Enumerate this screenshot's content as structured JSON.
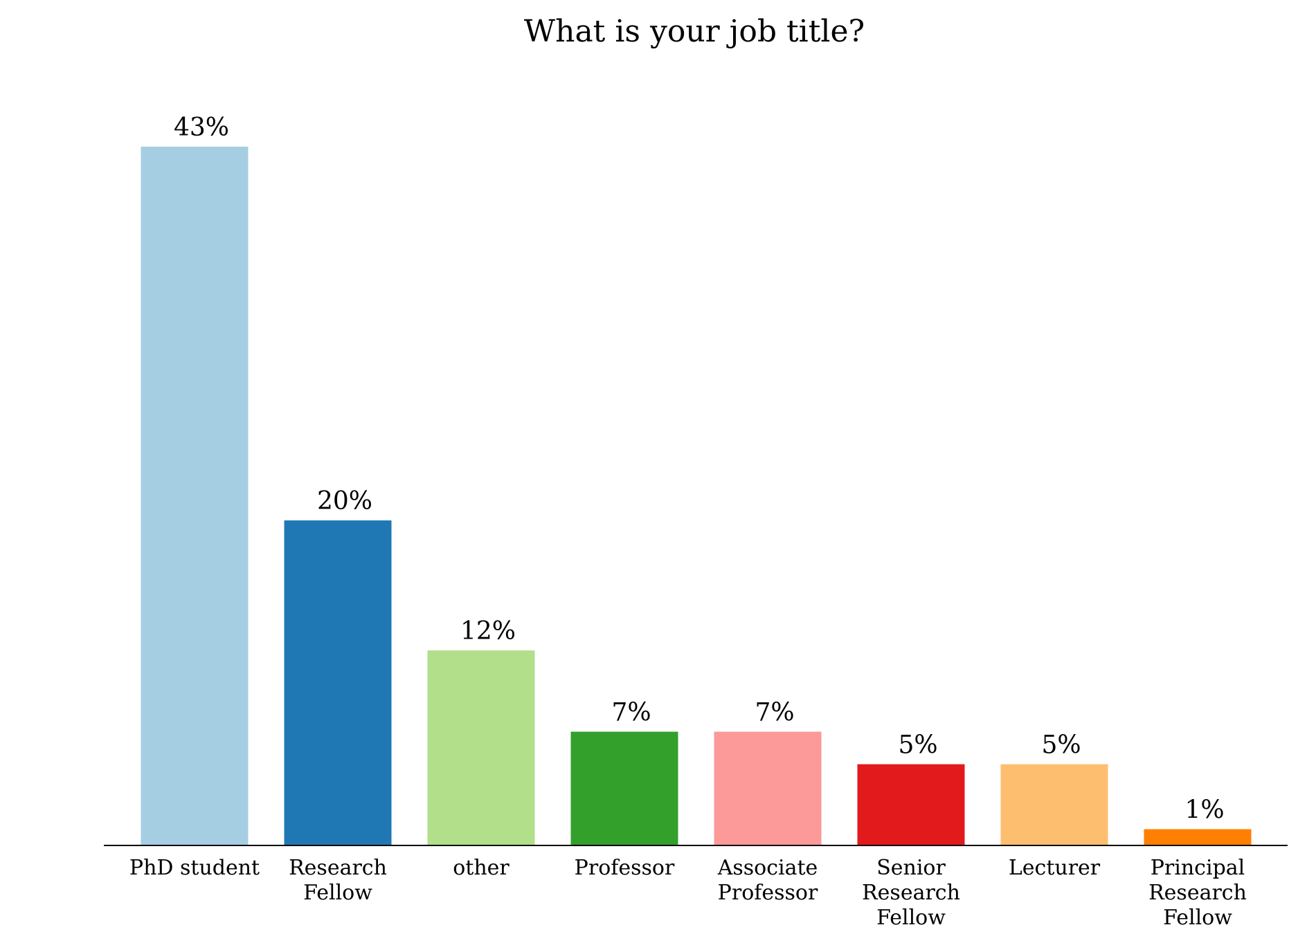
{
  "chart_data": {
    "type": "bar",
    "title": "What is your job title?",
    "xlabel": "",
    "ylabel": "",
    "ylim": [
      0,
      46
    ],
    "grid": false,
    "legend": "none",
    "categories": [
      "PhD student",
      "Research Fellow",
      "other",
      "Professor",
      "Associate Professor",
      "Senior Research Fellow",
      "Lecturer",
      "Principal Research Fellow"
    ],
    "tick_lines": [
      [
        "PhD student"
      ],
      [
        "Research",
        "Fellow"
      ],
      [
        "other"
      ],
      [
        "Professor"
      ],
      [
        "Associate",
        "Professor"
      ],
      [
        "Senior",
        "Research",
        "Fellow"
      ],
      [
        "Lecturer"
      ],
      [
        "Principal",
        "Research",
        "Fellow"
      ]
    ],
    "values": [
      43,
      20,
      12,
      7,
      7,
      5,
      5,
      1
    ],
    "data_labels": [
      "43%",
      "20%",
      "12%",
      "7%",
      "7%",
      "5%",
      "5%",
      "1%"
    ],
    "colors": [
      "#a6cee3",
      "#1f78b4",
      "#b2df8a",
      "#33a02c",
      "#fb9a99",
      "#e31a1c",
      "#fdbf6f",
      "#ff7f00"
    ]
  }
}
